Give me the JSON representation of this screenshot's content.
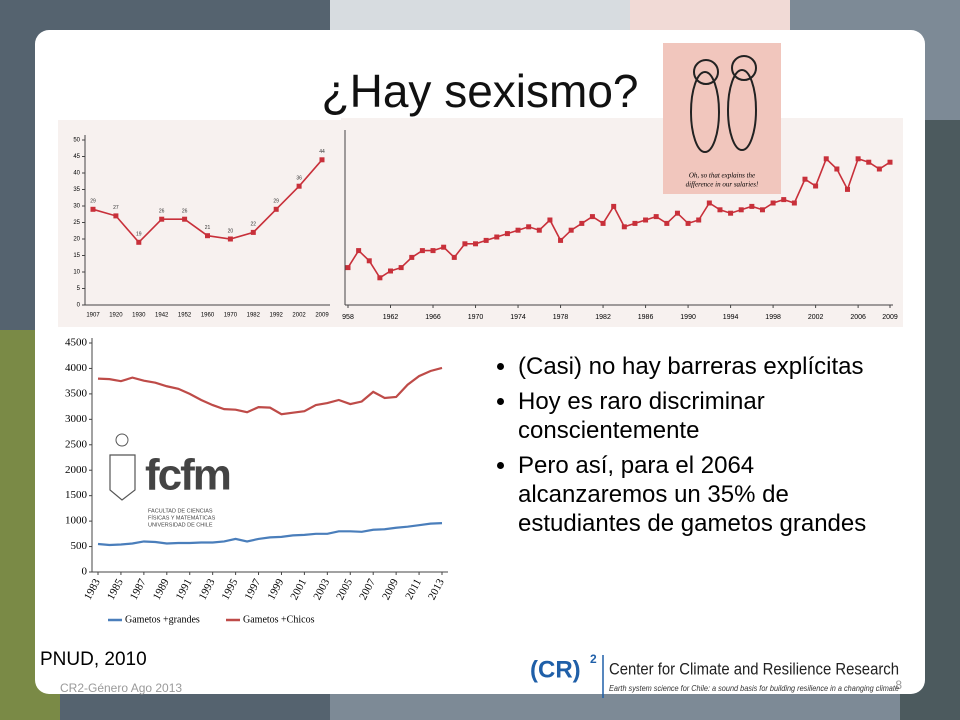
{
  "title": "¿Hay sexismo?",
  "cartoon_caption": [
    "Oh, so that explains the",
    "difference in our salaries!"
  ],
  "bullets": [
    "(Casi) no hay barreras explícitas",
    "Hoy es raro discriminar conscientemente",
    "Pero así, para el 2064 alcanzaremos un 35% de estudiantes de gametos grandes"
  ],
  "fcfm": {
    "name": "fcfm",
    "lines": [
      "FACULTAD DE CIENCIAS",
      "FÍSICAS Y MATEMÁTICAS",
      "UNIVERSIDAD DE CHILE"
    ]
  },
  "source": "PNUD, 2010",
  "footer": "CR2-Género Ago 2013",
  "page_number": "8",
  "logo": {
    "mark": "(CR)",
    "superscript": "2",
    "name": "Center for Climate and Resilience Research",
    "tagline": "Earth system science for Chile: a sound basis for building resilience in a changing climate"
  },
  "chart_data": [
    {
      "type": "line",
      "categories": [
        "1907",
        "1920",
        "1930",
        "1942",
        "1952",
        "1960",
        "1970",
        "1982",
        "1992",
        "2002",
        "2009"
      ],
      "values": [
        29,
        27,
        19,
        26,
        26,
        21,
        20,
        22,
        29,
        36,
        44
      ],
      "color": "#c8303a",
      "ylim": [
        0,
        50
      ],
      "yticks": [
        0,
        5,
        10,
        15,
        20,
        25,
        30,
        35,
        40,
        45,
        50
      ],
      "data_labels": true
    },
    {
      "type": "line",
      "x": [
        1958,
        1959,
        1960,
        1961,
        1962,
        1963,
        1964,
        1965,
        1966,
        1967,
        1968,
        1969,
        1970,
        1971,
        1972,
        1973,
        1974,
        1975,
        1976,
        1977,
        1978,
        1979,
        1980,
        1981,
        1982,
        1983,
        1984,
        1985,
        1986,
        1987,
        1988,
        1989,
        1990,
        1991,
        1992,
        1993,
        1994,
        1995,
        1996,
        1997,
        1998,
        1999,
        2000,
        2001,
        2002,
        2003,
        2004,
        2005,
        2006,
        2007,
        2008,
        2009
      ],
      "values": [
        11,
        16,
        13,
        8,
        10,
        11,
        14,
        16,
        16,
        17,
        14,
        18,
        18,
        19,
        20,
        21,
        22,
        23,
        22,
        25,
        19,
        22,
        24,
        26,
        24,
        29,
        23,
        24,
        25,
        26,
        24,
        27,
        24,
        25,
        30,
        28,
        27,
        28,
        29,
        28,
        30,
        31,
        30,
        37,
        35,
        43,
        40,
        34,
        43,
        42,
        40,
        42
      ],
      "color": "#c8303a",
      "xlim": [
        1958,
        2009
      ],
      "ylim": [
        0,
        50
      ],
      "xticks": [
        {
          "value": 1958,
          "label": "958"
        },
        1962,
        1966,
        1970,
        1974,
        1978,
        1982,
        1986,
        1990,
        1994,
        1998,
        2002,
        2006,
        2009
      ]
    },
    {
      "type": "line",
      "x": [
        1983,
        1984,
        1985,
        1986,
        1987,
        1988,
        1989,
        1990,
        1991,
        1992,
        1993,
        1994,
        1995,
        1996,
        1997,
        1998,
        1999,
        2000,
        2001,
        2002,
        2003,
        2004,
        2005,
        2006,
        2007,
        2008,
        2009,
        2010,
        2011,
        2012,
        2013
      ],
      "series": [
        {
          "name": "Gametos +grandes",
          "color": "#4a7ebb",
          "values": [
            550,
            530,
            540,
            560,
            600,
            590,
            560,
            570,
            570,
            580,
            580,
            600,
            650,
            600,
            650,
            680,
            690,
            720,
            730,
            750,
            750,
            800,
            800,
            790,
            830,
            840,
            870,
            890,
            920,
            950,
            960
          ]
        },
        {
          "name": "Gametos +Chicos",
          "color": "#be4b48",
          "values": [
            3800,
            3790,
            3750,
            3820,
            3760,
            3720,
            3650,
            3600,
            3500,
            3380,
            3280,
            3200,
            3190,
            3140,
            3240,
            3230,
            3100,
            3130,
            3160,
            3280,
            3320,
            3380,
            3300,
            3350,
            3540,
            3420,
            3440,
            3680,
            3850,
            3950,
            4010
          ]
        }
      ],
      "xlim": [
        1983,
        2013
      ],
      "ylim": [
        0,
        4500
      ],
      "yticks": [
        0,
        500,
        1000,
        1500,
        2000,
        2500,
        3000,
        3500,
        4000,
        4500
      ],
      "xticks": [
        1983,
        1985,
        1987,
        1989,
        1991,
        1993,
        1995,
        1997,
        1999,
        2001,
        2003,
        2005,
        2007,
        2009,
        2011,
        2013
      ]
    }
  ]
}
